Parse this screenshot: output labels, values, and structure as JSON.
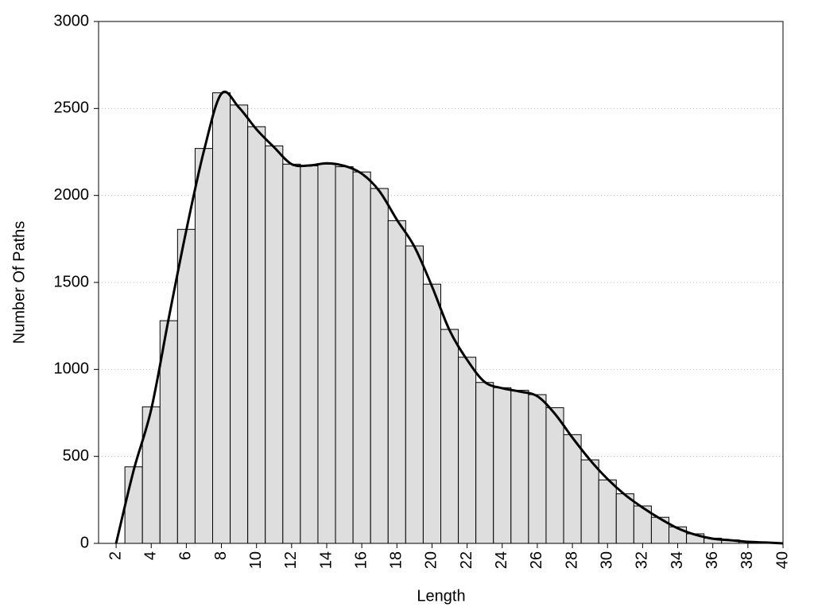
{
  "chart_data": {
    "type": "histogram",
    "xlabel": "Length",
    "ylabel": "Number Of Paths",
    "bins": [
      2.5,
      3.5,
      4.5,
      5.5,
      6.5,
      7.5,
      8.5,
      9.5,
      10.5,
      11.5,
      12.5,
      13.5,
      14.5,
      15.5,
      16.5,
      17.5,
      18.5,
      19.5,
      20.5,
      21.5,
      22.5,
      23.5,
      24.5,
      25.5,
      26.5,
      27.5,
      28.5,
      29.5,
      30.5,
      31.5,
      32.5,
      33.5,
      34.5,
      35.5,
      36.5,
      37.5,
      38.5,
      39.5
    ],
    "values": [
      440,
      785,
      1280,
      1805,
      2270,
      2590,
      2520,
      2395,
      2285,
      2180,
      2170,
      2180,
      2165,
      2135,
      2040,
      1855,
      1710,
      1490,
      1230,
      1070,
      925,
      895,
      880,
      855,
      780,
      625,
      480,
      365,
      285,
      215,
      150,
      95,
      55,
      30,
      20,
      10,
      5
    ],
    "color": "#dedede",
    "edgecolor": "#000000",
    "line": {
      "x": [
        2,
        3,
        4,
        5,
        6,
        7,
        8,
        9,
        10,
        11,
        12,
        13,
        14,
        15,
        16,
        17,
        18,
        19,
        20,
        21,
        22,
        23,
        24,
        25,
        26,
        27,
        28,
        29,
        30,
        31,
        32,
        33,
        34,
        35,
        36,
        37,
        38,
        39,
        40
      ],
      "values": [
        0,
        420,
        770,
        1295,
        1800,
        2255,
        2585,
        2505,
        2380,
        2277,
        2180,
        2172,
        2185,
        2170,
        2125,
        2025,
        1860,
        1705,
        1477,
        1225,
        1055,
        928,
        892,
        873,
        846,
        745,
        608,
        480,
        370,
        279,
        206,
        142,
        87,
        50,
        27,
        18,
        9,
        5,
        0
      ],
      "color": "#000000"
    },
    "xlim": [
      1,
      40
    ],
    "ylim": [
      0,
      3000
    ],
    "xticks": [
      2,
      4,
      6,
      8,
      10,
      12,
      14,
      16,
      18,
      20,
      22,
      24,
      26,
      28,
      30,
      32,
      34,
      36,
      38,
      40
    ],
    "yticks": [
      0,
      500,
      1000,
      1500,
      2000,
      2500,
      3000
    ],
    "grid": true
  }
}
